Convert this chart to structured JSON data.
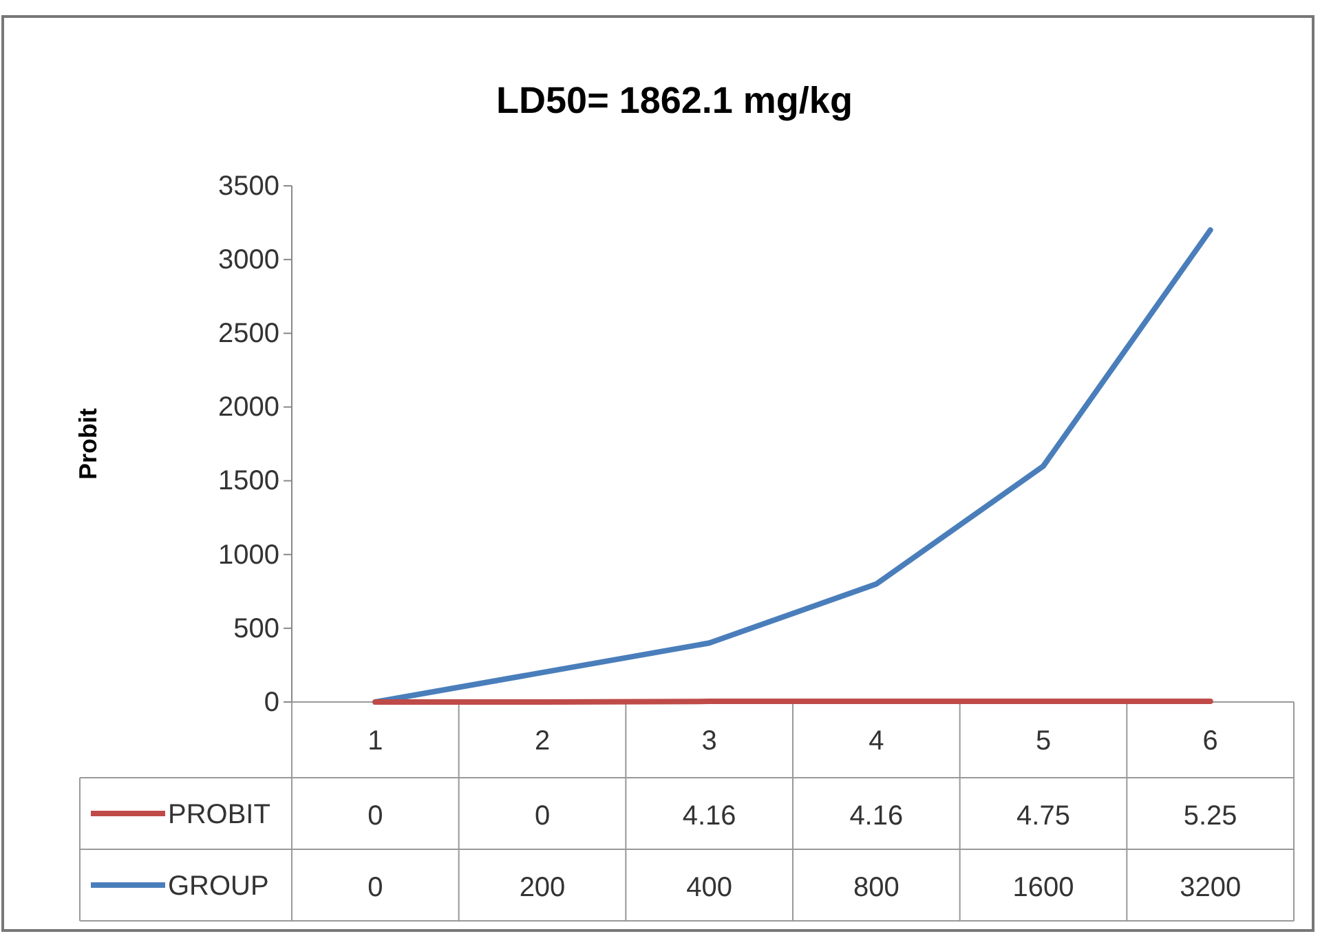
{
  "chart_data": {
    "type": "line",
    "title": "LD50= 1862.1 mg/kg",
    "ylabel": "Probit",
    "categories": [
      "1",
      "2",
      "3",
      "4",
      "5",
      "6"
    ],
    "series": [
      {
        "name": "PROBIT",
        "color": "#be4b48",
        "values": [
          0,
          0,
          4.16,
          4.16,
          4.75,
          5.25
        ]
      },
      {
        "name": "GROUP",
        "color": "#4a7ebb",
        "values": [
          0,
          200,
          400,
          800,
          1600,
          3200
        ]
      }
    ],
    "ylim": [
      0,
      3500
    ],
    "yticks": [
      0,
      500,
      1000,
      1500,
      2000,
      2500,
      3000,
      3500
    ],
    "grid": false,
    "legend": "bottom",
    "data_labels": true,
    "marker": "none",
    "line_style": "solid"
  }
}
